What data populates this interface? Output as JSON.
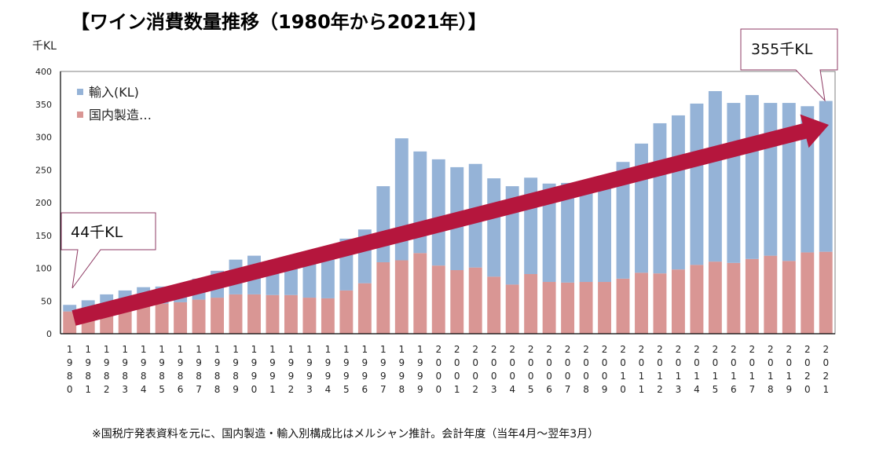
{
  "colors": {
    "imports": "#95b3d7",
    "domestic": "#d99694",
    "arrow": "#b5163d",
    "callout_border": "#8e3a63",
    "plot_border": "#808080"
  },
  "chart_data": {
    "type": "bar",
    "stacked": true,
    "title": "【ワイン消費数量推移（1980年から2021年）】",
    "ylabel": "千KL",
    "xlabel": "",
    "ylim": [
      0,
      400
    ],
    "yticks": [
      0,
      50,
      100,
      150,
      200,
      250,
      300,
      350,
      400
    ],
    "grid": false,
    "legend_position": "top-left",
    "categories": [
      "1980",
      "1981",
      "1982",
      "1983",
      "1984",
      "1985",
      "1986",
      "1987",
      "1988",
      "1989",
      "1990",
      "1991",
      "1992",
      "1993",
      "1994",
      "1995",
      "1996",
      "1997",
      "1998",
      "1999",
      "2000",
      "2001",
      "2002",
      "2003",
      "2004",
      "2005",
      "2006",
      "2007",
      "2008",
      "2009",
      "2010",
      "2011",
      "2012",
      "2013",
      "2014",
      "2015",
      "2016",
      "2017",
      "2018",
      "2019",
      "2020",
      "2021"
    ],
    "series": [
      {
        "name": "国内製造…",
        "color_key": "domestic",
        "values": [
          34,
          36,
          40,
          42,
          44,
          46,
          48,
          52,
          55,
          60,
          60,
          59,
          59,
          55,
          54,
          66,
          77,
          109,
          112,
          123,
          104,
          97,
          101,
          87,
          75,
          91,
          79,
          78,
          79,
          79,
          84,
          93,
          92,
          98,
          105,
          110,
          108,
          114,
          119,
          111,
          124,
          125
        ]
      },
      {
        "name": "輸入(KL)",
        "color_key": "imports",
        "values": [
          10,
          15,
          20,
          24,
          27,
          26,
          26,
          32,
          41,
          53,
          59,
          46,
          44,
          53,
          66,
          79,
          82,
          116,
          186,
          155,
          162,
          157,
          158,
          150,
          150,
          147,
          150,
          152,
          152,
          157,
          178,
          197,
          229,
          235,
          246,
          260,
          244,
          250,
          233,
          241,
          223,
          230
        ]
      }
    ],
    "legend": [
      "輸入(KL)",
      "国内製造…"
    ],
    "annotations": {
      "start_callout": "44千KL",
      "end_callout": "355千KL",
      "trend_arrow": "increasing"
    },
    "footnote": "※国税庁発表資料を元に、国内製造・輸入別構成比はメルシャン推計。会計年度（当年4月～翌年3月）"
  }
}
